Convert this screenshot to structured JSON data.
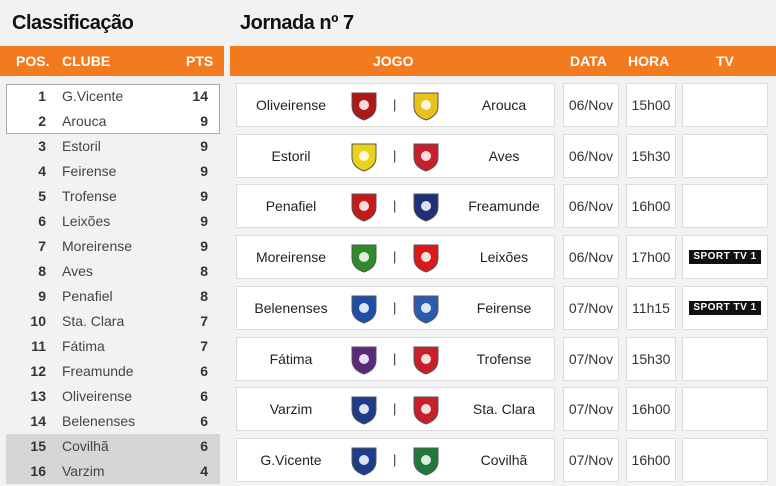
{
  "standings": {
    "title": "Classificação",
    "headers": {
      "pos": "POS.",
      "club": "CLUBE",
      "pts": "PTS"
    },
    "rows": [
      {
        "pos": "1",
        "club": "G.Vicente",
        "pts": "14"
      },
      {
        "pos": "2",
        "club": "Arouca",
        "pts": "9"
      },
      {
        "pos": "3",
        "club": "Estoril",
        "pts": "9"
      },
      {
        "pos": "4",
        "club": "Feirense",
        "pts": "9"
      },
      {
        "pos": "5",
        "club": "Trofense",
        "pts": "9"
      },
      {
        "pos": "6",
        "club": "Leixões",
        "pts": "9"
      },
      {
        "pos": "7",
        "club": "Moreirense",
        "pts": "9"
      },
      {
        "pos": "8",
        "club": "Aves",
        "pts": "8"
      },
      {
        "pos": "9",
        "club": "Penafiel",
        "pts": "8"
      },
      {
        "pos": "10",
        "club": "Sta. Clara",
        "pts": "7"
      },
      {
        "pos": "11",
        "club": "Fátima",
        "pts": "7"
      },
      {
        "pos": "12",
        "club": "Freamunde",
        "pts": "6"
      },
      {
        "pos": "13",
        "club": "Oliveirense",
        "pts": "6"
      },
      {
        "pos": "14",
        "club": "Belenenses",
        "pts": "6"
      },
      {
        "pos": "15",
        "club": "Covilhã",
        "pts": "6"
      },
      {
        "pos": "16",
        "club": "Varzim",
        "pts": "4"
      }
    ]
  },
  "fixtures": {
    "title": "Jornada nº 7",
    "headers": {
      "game": "JOGO",
      "date": "DATA",
      "hour": "HORA",
      "tv": "TV"
    },
    "separator": "|",
    "rows": [
      {
        "home": "Oliveirense",
        "away": "Arouca",
        "date": "06/Nov",
        "hour": "15h00",
        "tv": "",
        "home_color": "#b01818",
        "away_color": "#e6c21a"
      },
      {
        "home": "Estoril",
        "away": "Aves",
        "date": "06/Nov",
        "hour": "15h30",
        "tv": "",
        "home_color": "#e8d21a",
        "away_color": "#c8202a"
      },
      {
        "home": "Penafiel",
        "away": "Freamunde",
        "date": "06/Nov",
        "hour": "16h00",
        "tv": "",
        "home_color": "#c41a1a",
        "away_color": "#1f2f7a"
      },
      {
        "home": "Moreirense",
        "away": "Leixões",
        "date": "06/Nov",
        "hour": "17h00",
        "tv": "SPORT TV 1",
        "home_color": "#2f8a2a",
        "away_color": "#d81a1a"
      },
      {
        "home": "Belenenses",
        "away": "Feirense",
        "date": "07/Nov",
        "hour": "11h15",
        "tv": "SPORT TV 1",
        "home_color": "#1e4fa8",
        "away_color": "#2a5bb0"
      },
      {
        "home": "Fátima",
        "away": "Trofense",
        "date": "07/Nov",
        "hour": "15h30",
        "tv": "",
        "home_color": "#5a2a78",
        "away_color": "#c8202a"
      },
      {
        "home": "Varzim",
        "away": "Sta. Clara",
        "date": "07/Nov",
        "hour": "16h00",
        "tv": "",
        "home_color": "#1e3c8a",
        "away_color": "#c8202a"
      },
      {
        "home": "G.Vicente",
        "away": "Covilhã",
        "date": "07/Nov",
        "hour": "16h00",
        "tv": "",
        "home_color": "#1e3c8a",
        "away_color": "#1f7a3a"
      }
    ]
  }
}
